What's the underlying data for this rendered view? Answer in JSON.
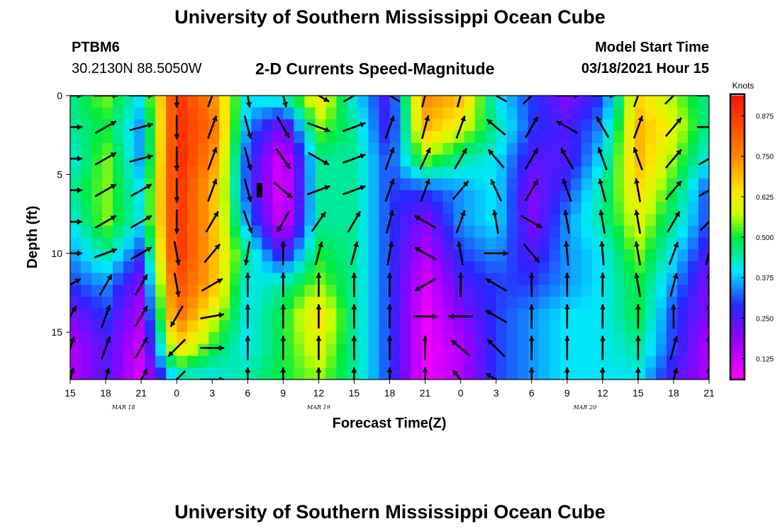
{
  "header": {
    "title": "University of Southern Mississippi Ocean Cube",
    "station_id": "PTBM6",
    "station_coords": "30.2130N 88.5050W",
    "plot_title": "2-D Currents Speed-Magnitude",
    "model_start_label": "Model Start Time",
    "model_start_value": "03/18/2021 Hour 15"
  },
  "footer": {
    "title": "University of Southern Mississippi Ocean Cube"
  },
  "chart_data": {
    "type": "heatmap",
    "xlabel": "Forecast Time(Z)",
    "ylabel": "Depth (ft)",
    "x_unit": "hours since model start",
    "xlim": [
      0,
      54
    ],
    "ylim": [
      0,
      18
    ],
    "y_inverted": true,
    "x_ticks": [
      {
        "x": 0,
        "label": "15"
      },
      {
        "x": 3,
        "label": "18"
      },
      {
        "x": 6,
        "label": "21"
      },
      {
        "x": 9,
        "label": "0"
      },
      {
        "x": 12,
        "label": "3"
      },
      {
        "x": 15,
        "label": "6"
      },
      {
        "x": 18,
        "label": "9"
      },
      {
        "x": 21,
        "label": "12"
      },
      {
        "x": 24,
        "label": "15"
      },
      {
        "x": 27,
        "label": "18"
      },
      {
        "x": 30,
        "label": "21"
      },
      {
        "x": 33,
        "label": "0"
      },
      {
        "x": 36,
        "label": "3"
      },
      {
        "x": 39,
        "label": "6"
      },
      {
        "x": 42,
        "label": "9"
      },
      {
        "x": 45,
        "label": "12"
      },
      {
        "x": 48,
        "label": "15"
      },
      {
        "x": 51,
        "label": "18"
      },
      {
        "x": 54,
        "label": "21"
      }
    ],
    "date_labels": [
      {
        "x": 4.5,
        "label": "MAR 18"
      },
      {
        "x": 21,
        "label": "MAR 19"
      },
      {
        "x": 43.5,
        "label": "MAR 20"
      }
    ],
    "y_ticks": [
      {
        "y": 0,
        "label": "0"
      },
      {
        "y": 5,
        "label": "5"
      },
      {
        "y": 10,
        "label": "10"
      },
      {
        "y": 15,
        "label": "15"
      }
    ],
    "colorbar": {
      "title": "Knots",
      "min": 0.0625,
      "max": 0.9375,
      "ticks": [
        "0.125",
        "0.250",
        "0.375",
        "0.500",
        "0.625",
        "0.750",
        "0.875"
      ],
      "tick_values": [
        0.125,
        0.25,
        0.375,
        0.5,
        0.625,
        0.75,
        0.875
      ]
    },
    "time_columns": [
      0,
      3,
      6,
      9,
      12,
      15,
      18,
      21,
      24,
      27,
      30,
      33,
      36,
      39,
      42,
      45,
      48,
      51,
      54
    ],
    "depth_rows": [
      0,
      2,
      4,
      6,
      8,
      10,
      12,
      14,
      16,
      18
    ],
    "speed_knots": [
      [
        0.45,
        0.55,
        0.4,
        0.9,
        0.75,
        0.4,
        0.45,
        0.65,
        0.4,
        0.25,
        0.75,
        0.7,
        0.4,
        0.3,
        0.2,
        0.3,
        0.65,
        0.55,
        0.45
      ],
      [
        0.45,
        0.5,
        0.35,
        0.9,
        0.8,
        0.35,
        0.2,
        0.55,
        0.45,
        0.25,
        0.7,
        0.6,
        0.45,
        0.3,
        0.25,
        0.35,
        0.7,
        0.6,
        0.45
      ],
      [
        0.4,
        0.55,
        0.35,
        0.92,
        0.75,
        0.3,
        0.1,
        0.45,
        0.45,
        0.3,
        0.55,
        0.45,
        0.4,
        0.25,
        0.25,
        0.4,
        0.7,
        0.55,
        0.4
      ],
      [
        0.45,
        0.55,
        0.4,
        0.9,
        0.7,
        0.3,
        0.08,
        0.45,
        0.45,
        0.3,
        0.3,
        0.35,
        0.4,
        0.2,
        0.3,
        0.45,
        0.65,
        0.5,
        0.3
      ],
      [
        0.4,
        0.55,
        0.4,
        0.9,
        0.7,
        0.35,
        0.1,
        0.45,
        0.45,
        0.3,
        0.2,
        0.35,
        0.4,
        0.2,
        0.35,
        0.45,
        0.6,
        0.45,
        0.3
      ],
      [
        0.35,
        0.45,
        0.3,
        0.9,
        0.7,
        0.45,
        0.25,
        0.5,
        0.45,
        0.3,
        0.15,
        0.3,
        0.35,
        0.25,
        0.35,
        0.4,
        0.55,
        0.4,
        0.25
      ],
      [
        0.3,
        0.35,
        0.2,
        0.85,
        0.7,
        0.4,
        0.45,
        0.55,
        0.45,
        0.3,
        0.1,
        0.25,
        0.3,
        0.3,
        0.35,
        0.4,
        0.5,
        0.35,
        0.2
      ],
      [
        0.2,
        0.3,
        0.15,
        0.8,
        0.6,
        0.4,
        0.5,
        0.65,
        0.45,
        0.3,
        0.08,
        0.2,
        0.3,
        0.35,
        0.4,
        0.4,
        0.5,
        0.3,
        0.2
      ],
      [
        0.15,
        0.25,
        0.12,
        0.65,
        0.5,
        0.4,
        0.5,
        0.6,
        0.45,
        0.3,
        0.08,
        0.15,
        0.3,
        0.35,
        0.4,
        0.4,
        0.45,
        0.3,
        0.15
      ],
      [
        0.15,
        0.25,
        0.1,
        0.4,
        0.4,
        0.45,
        0.5,
        0.55,
        0.45,
        0.3,
        0.08,
        0.15,
        0.3,
        0.35,
        0.4,
        0.4,
        0.4,
        0.25,
        0.15
      ]
    ],
    "arrow_columns": [
      0,
      3,
      6,
      9,
      12,
      15,
      18,
      21,
      24,
      27,
      30,
      33,
      36,
      39,
      42,
      45,
      48,
      51,
      54
    ],
    "arrow_rows": [
      0,
      2,
      4,
      6,
      8,
      10,
      12,
      14,
      16,
      18
    ],
    "arrow_direction_deg": [
      [
        90,
        90,
        90,
        180,
        20,
        170,
        165,
        120,
        60,
        300,
        15,
        15,
        300,
        45,
        90,
        90,
        20,
        45,
        90
      ],
      [
        90,
        60,
        75,
        180,
        20,
        165,
        150,
        110,
        70,
        20,
        15,
        20,
        310,
        30,
        300,
        330,
        20,
        40,
        90
      ],
      [
        90,
        60,
        75,
        180,
        20,
        165,
        145,
        120,
        70,
        20,
        25,
        30,
        320,
        30,
        330,
        340,
        340,
        40,
        60
      ],
      [
        90,
        60,
        60,
        180,
        20,
        165,
        130,
        70,
        70,
        20,
        20,
        40,
        335,
        30,
        340,
        345,
        350,
        40,
        60
      ],
      [
        90,
        60,
        60,
        180,
        30,
        160,
        210,
        35,
        30,
        15,
        300,
        20,
        350,
        120,
        350,
        350,
        350,
        30,
        45
      ],
      [
        90,
        70,
        60,
        170,
        40,
        190,
        0,
        15,
        15,
        10,
        300,
        350,
        90,
        140,
        355,
        355,
        350,
        20,
        15
      ],
      [
        60,
        30,
        30,
        170,
        60,
        0,
        0,
        0,
        0,
        0,
        240,
        0,
        300,
        0,
        0,
        0,
        350,
        15,
        0
      ],
      [
        30,
        20,
        30,
        210,
        80,
        0,
        0,
        0,
        0,
        0,
        90,
        270,
        300,
        0,
        0,
        0,
        0,
        0,
        0
      ],
      [
        20,
        20,
        30,
        225,
        90,
        0,
        0,
        0,
        0,
        0,
        0,
        310,
        315,
        0,
        0,
        0,
        0,
        15,
        0
      ],
      [
        15,
        15,
        30,
        225,
        90,
        0,
        0,
        0,
        0,
        0,
        0,
        320,
        300,
        0,
        0,
        0,
        0,
        15,
        0
      ]
    ],
    "arrow_direction_convention": "degrees clockwise from up (0 = pointing up, 90 = pointing right)",
    "marker": {
      "x": 16,
      "y": 6.0
    }
  }
}
